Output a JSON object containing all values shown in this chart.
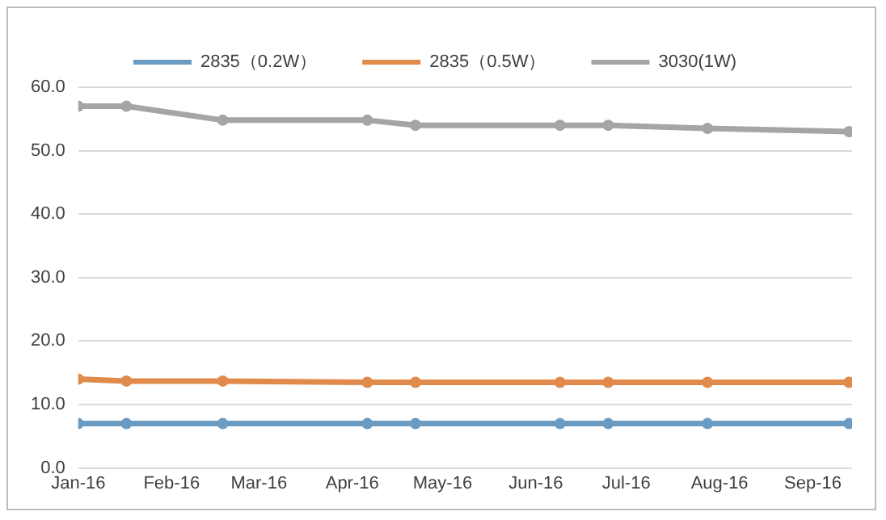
{
  "chart_data": {
    "type": "line",
    "x": [
      "2016-01-01",
      "2016-01-17",
      "2016-02-18",
      "2016-04-06",
      "2016-04-22",
      "2016-06-09",
      "2016-06-25",
      "2016-07-28",
      "2016-09-13"
    ],
    "series": [
      {
        "name": "2835（0.2W）",
        "color": "#6a9bc3",
        "values": [
          7,
          7,
          7,
          7,
          7,
          7,
          7,
          7,
          7
        ]
      },
      {
        "name": "2835（0.5W）",
        "color": "#e08a4c",
        "values": [
          14,
          13.7,
          13.7,
          13.5,
          13.5,
          13.5,
          13.5,
          13.5,
          13.5
        ]
      },
      {
        "name": "3030(1W)",
        "color": "#a5a5a5",
        "values": [
          57,
          57,
          54.8,
          54.8,
          54,
          54,
          54,
          53.5,
          53
        ]
      }
    ],
    "xlim": [
      "2016-01-01",
      "2016-09-14"
    ],
    "xticks": [
      {
        "value": "2016-01-01",
        "label": "Jan-16"
      },
      {
        "value": "2016-02-01",
        "label": "Feb-16"
      },
      {
        "value": "2016-03-01",
        "label": "Mar-16"
      },
      {
        "value": "2016-04-01",
        "label": "Apr-16"
      },
      {
        "value": "2016-05-01",
        "label": "May-16"
      },
      {
        "value": "2016-06-01",
        "label": "Jun-16"
      },
      {
        "value": "2016-07-01",
        "label": "Jul-16"
      },
      {
        "value": "2016-08-01",
        "label": "Aug-16"
      },
      {
        "value": "2016-09-01",
        "label": "Sep-16"
      }
    ],
    "ylim": [
      0,
      60
    ],
    "yticks": [
      {
        "value": 0,
        "label": "0.0"
      },
      {
        "value": 10,
        "label": "10.0"
      },
      {
        "value": 20,
        "label": "20.0"
      },
      {
        "value": 30,
        "label": "30.0"
      },
      {
        "value": 40,
        "label": "40.0"
      },
      {
        "value": 50,
        "label": "50.0"
      },
      {
        "value": 60,
        "label": "60.0"
      }
    ],
    "grid": "y",
    "legend": "top",
    "marker": "circle",
    "line_style": "solid"
  }
}
